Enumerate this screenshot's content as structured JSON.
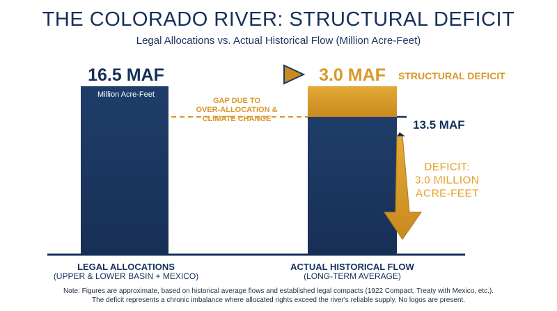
{
  "title": "THE COLORADO RIVER: STRUCTURAL DEFICIT",
  "subtitle": "Legal Allocations vs. Actual Historical Flow (Million Acre-Feet)",
  "colors": {
    "navy": "#1d3a64",
    "gold": "#d8982a",
    "text": "#14305a"
  },
  "chart_data": {
    "type": "bar",
    "categories": [
      "LEGAL ALLOCATIONS",
      "ACTUAL HISTORICAL FLOW"
    ],
    "category_subtitles": [
      "(UPPER & LOWER BASIN + MEXICO)",
      "(LONG-TERM AVERAGE)"
    ],
    "values": [
      16.5,
      13.5
    ],
    "value_labels": [
      "16.5 MAF",
      "13.5 MAF"
    ],
    "deficit": {
      "value": 3.0,
      "label": "3.0 MAF",
      "name": "STRUCTURAL DEFICIT"
    },
    "unit_label": "Million Acre-Feet",
    "ylim": [
      0,
      16.5
    ],
    "annotations": {
      "gap": [
        "GAP DUE TO",
        "OVER-ALLOCATION &",
        "CLIMATE CHANGE"
      ],
      "deficit_callout": [
        "DEFICIT:",
        "3.0 MILLION",
        "ACRE-FEET"
      ]
    }
  },
  "notes": [
    "Note: Figures are approximate, based on historical average flows and established legal compacts (1922 Compact, Treaty with Mexico, etc.).",
    "The deficit represents a chronic imbalance where allocated rights exceed the river's reliable supply. No logos are present."
  ]
}
